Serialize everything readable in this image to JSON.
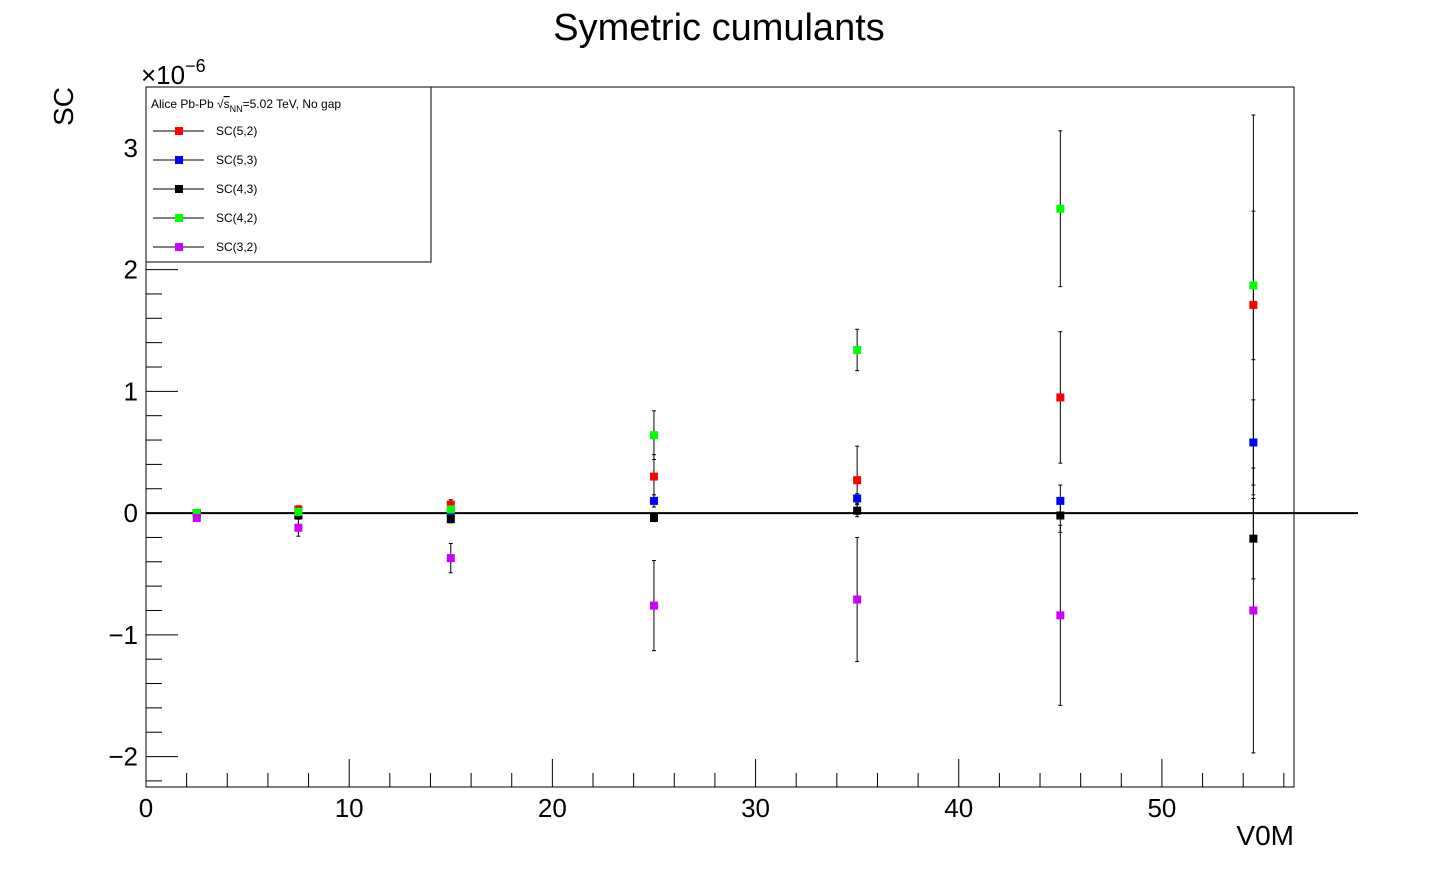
{
  "chart_data": {
    "type": "scatter",
    "title": "Symetric cumulants",
    "xlabel": "V0M",
    "ylabel": "SC",
    "y_multiplier": "×10",
    "y_multiplier_exp": "−6",
    "xlim": [
      0,
      56.5
    ],
    "ylim": [
      -2.25,
      3.5
    ],
    "x_ticks": [
      0,
      10,
      20,
      30,
      40,
      50
    ],
    "x_tick_labels": [
      "0",
      "10",
      "20",
      "30",
      "40",
      "50"
    ],
    "y_ticks": [
      -2,
      -1,
      0,
      1,
      2,
      3
    ],
    "y_tick_labels": [
      "−2",
      "−1",
      "0",
      "1",
      "2",
      "3"
    ],
    "zero_line": true,
    "grid": false,
    "legend": {
      "position": "top-left",
      "title_prefix": "Alice Pb-Pb ",
      "title_sqrt": "s",
      "title_sub": "NN",
      "title_suffix": "=5.02 TeV, No gap"
    },
    "x": [
      2.5,
      7.5,
      15,
      25,
      35,
      45,
      54.5
    ],
    "series": [
      {
        "name": "SC(5,2)",
        "color": "#ff0000",
        "values": [
          0.0,
          0.03,
          0.07,
          0.3,
          0.27,
          0.95,
          1.71
        ],
        "errors": [
          0.01,
          0.03,
          0.04,
          0.18,
          0.28,
          0.54,
          1.56
        ]
      },
      {
        "name": "SC(5,3)",
        "color": "#0000ff",
        "values": [
          0.0,
          0.0,
          0.0,
          0.1,
          0.12,
          0.1,
          0.58
        ],
        "errors": [
          0.01,
          0.02,
          0.02,
          0.05,
          0.04,
          0.13,
          0.35
        ]
      },
      {
        "name": "SC(4,3)",
        "color": "#000000",
        "values": [
          0.0,
          -0.02,
          -0.05,
          -0.04,
          0.02,
          -0.02,
          -0.21
        ],
        "errors": [
          0.01,
          0.02,
          0.03,
          0.03,
          0.05,
          0.14,
          0.33
        ]
      },
      {
        "name": "SC(4,2)",
        "color": "#00ff00",
        "values": [
          0.0,
          0.01,
          0.03,
          0.64,
          1.34,
          2.5,
          1.87
        ],
        "errors": [
          0.01,
          0.02,
          0.03,
          0.2,
          0.17,
          0.64,
          0.61
        ]
      },
      {
        "name": "SC(3,2)",
        "color": "#cc00ff",
        "values": [
          -0.04,
          -0.12,
          -0.37,
          -0.76,
          -0.71,
          -0.84,
          -0.8
        ],
        "errors": [
          0.01,
          0.07,
          0.12,
          0.37,
          0.51,
          0.74,
          1.17
        ]
      }
    ]
  }
}
